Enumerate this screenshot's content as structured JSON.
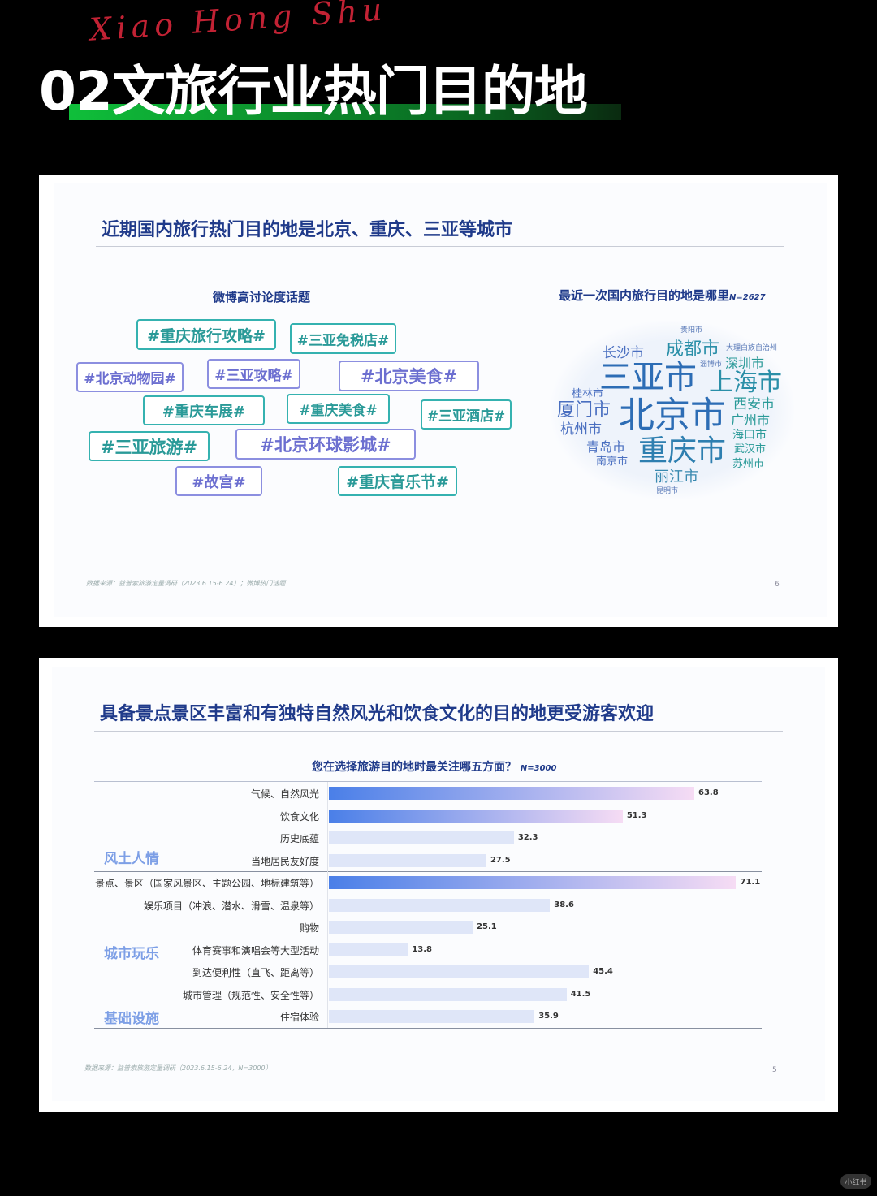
{
  "header": {
    "script_text": "Xiao Hong Shu",
    "title": "02文旅行业热门目的地"
  },
  "slide1": {
    "title": "近期国内旅行热门目的地是北京、重庆、三亚等城市",
    "left_subtitle": "微博高讨论度话题",
    "right_subtitle": "最近一次国内旅行目的地是哪里",
    "right_n": "N=2627",
    "hashtags": [
      "#重庆旅行攻略#",
      "#三亚免税店#",
      "#北京动物园#",
      "#三亚攻略#",
      "#北京美食#",
      "#重庆车展#",
      "#重庆美食#",
      "#三亚酒店#",
      "#三亚旅游#",
      "#北京环球影城#",
      "#故宫#",
      "#重庆音乐节#"
    ],
    "wordcloud": [
      "北京市",
      "三亚市",
      "重庆市",
      "上海市",
      "成都市",
      "长沙市",
      "深圳市",
      "厦门市",
      "西安市",
      "广州市",
      "桂林市",
      "杭州市",
      "海口市",
      "青岛市",
      "武汉市",
      "南京市",
      "苏州市",
      "丽江市",
      "贵阳市",
      "大理白族自治州",
      "淄博市",
      "昆明市"
    ],
    "footnote": "数据来源：益普索旅游定量调研（2023.6.15-6.24）；微博热门话题",
    "page": "6"
  },
  "slide2": {
    "title": "具备景点景区丰富和有独特自然风光和饮食文化的目的地更受游客欢迎",
    "chart_subtitle": "您在选择旅游目的地时最关注哪五方面？",
    "chart_n": "N=3000",
    "groups": [
      "风土人情",
      "城市玩乐",
      "基础设施"
    ],
    "footnote": "数据来源：益普索旅游定量调研（2023.6.15-6.24，N=3000）",
    "page": "5"
  },
  "chart_data": {
    "type": "bar",
    "orientation": "horizontal",
    "title": "您在选择旅游目的地时最关注哪五方面？",
    "categories": [
      "气候、自然风光",
      "饮食文化",
      "历史底蕴",
      "当地居民友好度",
      "景点、景区（国家风景区、主题公园、地标建筑等）",
      "娱乐项目（冲浪、潜水、滑雪、温泉等）",
      "购物",
      "体育赛事和演唱会等大型活动",
      "到达便利性（直飞、距离等）",
      "城市管理（规范性、安全性等）",
      "住宿体验"
    ],
    "group_of": [
      "风土人情",
      "风土人情",
      "风土人情",
      "风土人情",
      "城市玩乐",
      "城市玩乐",
      "城市玩乐",
      "城市玩乐",
      "基础设施",
      "基础设施",
      "基础设施"
    ],
    "values": [
      63.8,
      51.3,
      32.3,
      27.5,
      71.1,
      38.6,
      25.1,
      13.8,
      45.4,
      41.5,
      35.9
    ],
    "highlighted": [
      true,
      true,
      false,
      false,
      true,
      false,
      false,
      false,
      false,
      false,
      false
    ],
    "value_labels": [
      "63.8",
      "51.3",
      "32.3",
      "27.5",
      "71.1",
      "38.6",
      "25.1",
      "13.8",
      "45.4",
      "41.5",
      "35.9"
    ],
    "colors": {
      "highlight_start": "#4a7fe8",
      "highlight_end": "#f6dcf4",
      "normal": "#dfe6f8"
    },
    "grid": false
  },
  "brand": {
    "logo_text": "小红书"
  }
}
